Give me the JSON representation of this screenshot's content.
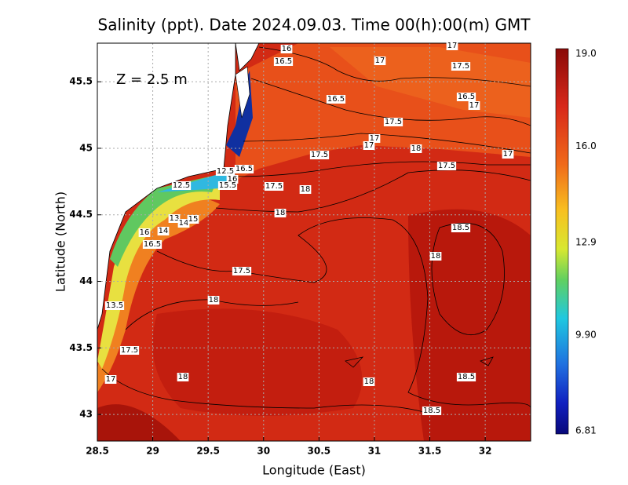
{
  "title": "Salinity (ppt). Date 2024.09.03. Time 00(h):00(m) GMT",
  "annotation": "Z = 2.5 m",
  "x_axis": {
    "label": "Longitude (East)",
    "lim": [
      28.5,
      32.41
    ],
    "ticks": [
      28.5,
      29,
      29.5,
      30,
      30.5,
      31,
      31.5,
      32
    ]
  },
  "y_axis": {
    "label": "Latitude (North)",
    "lim": [
      42.8,
      45.79
    ],
    "ticks": [
      43,
      43.5,
      44,
      44.5,
      45,
      45.5
    ]
  },
  "colorbar": {
    "lim": [
      6.71,
      19.16
    ],
    "ticks": [
      {
        "value": 19,
        "label": "19.0"
      },
      {
        "value": 16,
        "label": "16.0"
      },
      12.9,
      {
        "value": 9.9,
        "label": "9.90"
      },
      6.81
    ]
  },
  "contour_labels": [
    "16",
    "16.5",
    "17",
    "17",
    "17.5",
    "16.5",
    "16.5",
    "17",
    "17.5",
    "17",
    "17",
    "18",
    "17",
    "17.5",
    "17.5",
    "12.5",
    "16.5",
    "16",
    "15.5",
    "17.5",
    "18",
    "12.5",
    "18",
    "13",
    "14",
    "15",
    "16",
    "14",
    "16.5",
    "18.5",
    "18",
    "17.5",
    "18",
    "13.5",
    "17.5",
    "17",
    "18",
    "18",
    "18.5",
    "18.5"
  ]
}
